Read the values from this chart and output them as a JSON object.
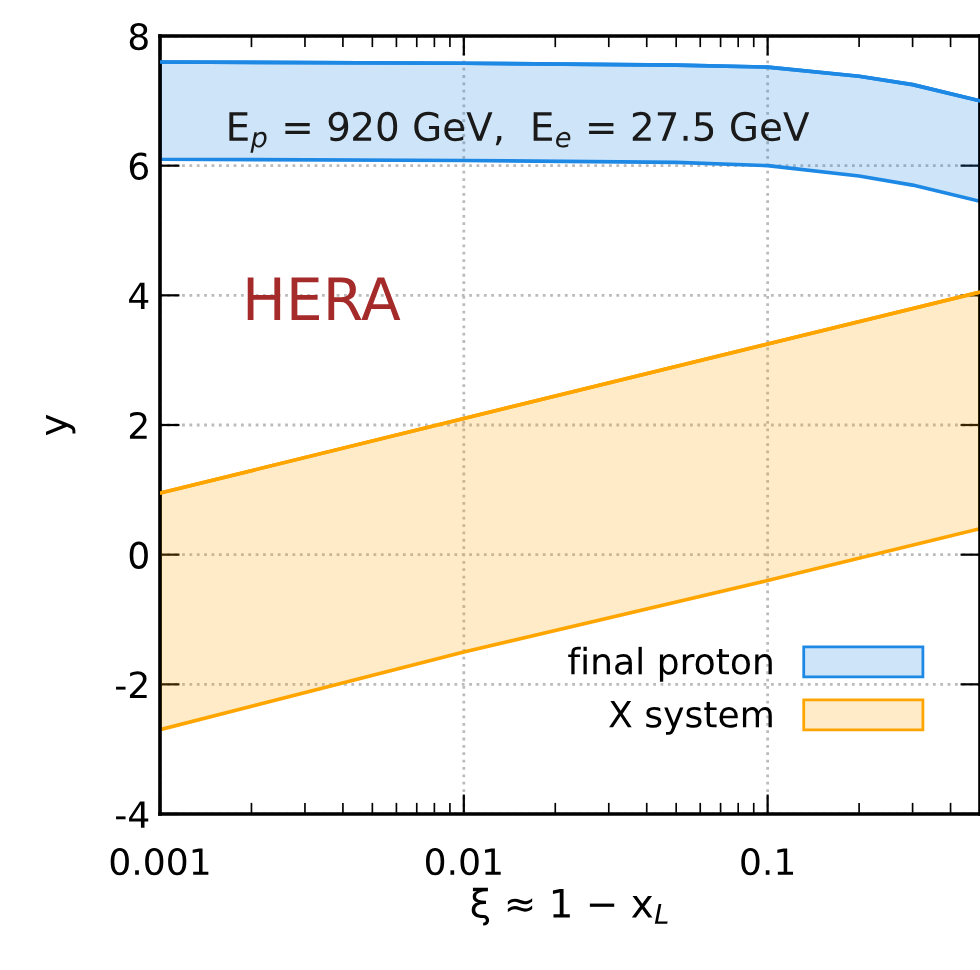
{
  "chart_data": {
    "type": "line",
    "xlabel": "ξ ≈ 1 − x$_{L}$",
    "ylabel": "y",
    "annotations": [
      "E$_{p}$ = 920 GeV,  E$_{e}$ = 27.5 GeV",
      "HERA"
    ],
    "series": [
      {
        "name": "final proton",
        "color": "#1e88e5",
        "x": [
          0.001,
          0.01,
          0.05,
          0.1,
          0.2,
          0.3,
          0.5
        ],
        "values": [
          7.6,
          7.58,
          7.55,
          7.52,
          7.38,
          7.25,
          7.0
        ],
        "upper": [
          7.6,
          7.58,
          7.55,
          7.52,
          7.38,
          7.25,
          7.0
        ],
        "lower": [
          6.1,
          6.08,
          6.05,
          6.0,
          5.84,
          5.7,
          5.45
        ]
      },
      {
        "name": "X system",
        "color": "#ffa500",
        "x": [
          0.001,
          0.01,
          0.1,
          0.5
        ],
        "values": [
          0.95,
          2.1,
          3.25,
          4.05
        ],
        "upper": [
          0.95,
          2.1,
          3.25,
          4.05
        ],
        "lower": [
          -2.7,
          -1.5,
          -0.4,
          0.4
        ]
      }
    ],
    "log": "x",
    "xlim": [
      0.001,
      0.5
    ],
    "xticks": [
      0.001,
      0.01,
      0.1
    ],
    "ylim": [
      -4,
      8
    ],
    "yticks": [
      -4,
      -2,
      0,
      2,
      4,
      6,
      8
    ],
    "grid": true,
    "legend": "bottom right"
  }
}
